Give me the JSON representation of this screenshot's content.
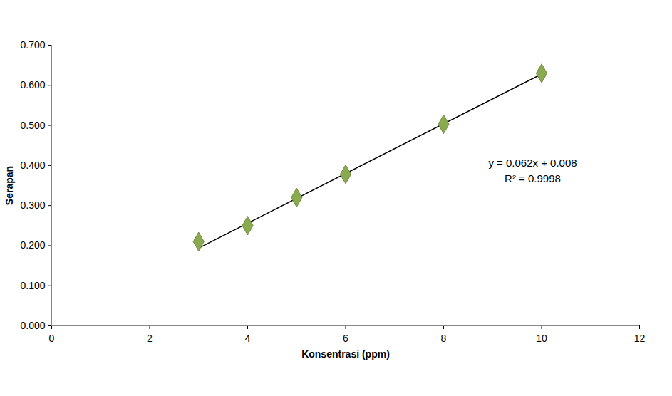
{
  "chart_data": {
    "type": "scatter",
    "x_label": "Konsentrasi (ppm)",
    "y_label": "Serapan",
    "x": [
      3,
      4,
      5,
      6,
      8,
      10
    ],
    "values": [
      0.21,
      0.25,
      0.32,
      0.378,
      0.503,
      0.63
    ],
    "color": "#8aaa4f",
    "marker": "diamond",
    "trendline": {
      "x": [
        3,
        10
      ],
      "values": [
        0.194,
        0.628
      ],
      "color": "#000000",
      "line_style": "solid"
    },
    "annotations": [
      "y = 0.062x + 0.008",
      "R² = 0.9998"
    ],
    "xlim": [
      0,
      12
    ],
    "xticks": [
      0,
      2,
      4,
      6,
      8,
      10,
      12
    ],
    "ylim": [
      0,
      0.7
    ],
    "yticks": [
      {
        "value": 0,
        "label": "0.000"
      },
      {
        "value": 0.1,
        "label": "0.100"
      },
      {
        "value": 0.2,
        "label": "0.200"
      },
      {
        "value": 0.3,
        "label": "0.300"
      },
      {
        "value": 0.4,
        "label": "0.400"
      },
      {
        "value": 0.5,
        "label": "0.500"
      },
      {
        "value": 0.6,
        "label": "0.600"
      },
      {
        "value": 0.7,
        "label": "0.700"
      }
    ],
    "grid": false
  }
}
